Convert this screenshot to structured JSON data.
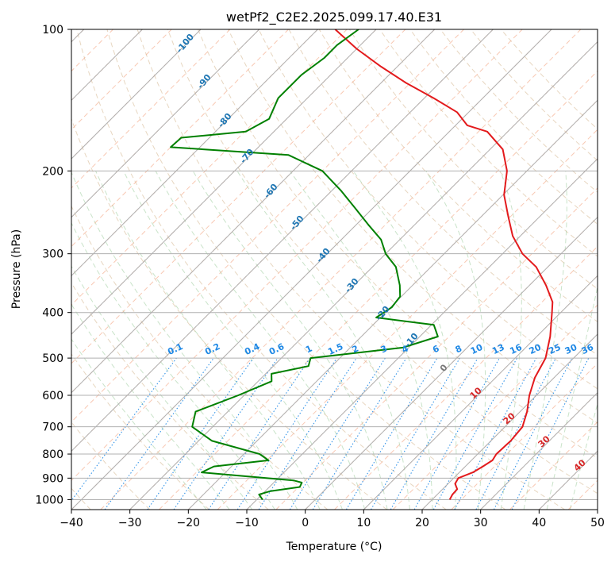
{
  "chart_data": {
    "type": "skew-t log-p sounding",
    "title": "wetPf2_C2E2.2025.099.17.40.E31",
    "xlabel": "Temperature (°C)",
    "ylabel": "Pressure (hPa)",
    "xlim": [
      -40,
      50
    ],
    "ylim": [
      1050,
      100
    ],
    "y_scale": "log",
    "grid": true,
    "x_ticks": [
      -40,
      -30,
      -20,
      -10,
      0,
      10,
      20,
      30,
      40,
      50
    ],
    "y_ticks": [
      100,
      200,
      300,
      400,
      500,
      600,
      700,
      800,
      900,
      1000
    ],
    "series": [
      {
        "role": "temperature",
        "color": "#e31a1c",
        "points": [
          [
            23.0,
            1000
          ],
          [
            22.6,
            975
          ],
          [
            22.5,
            950
          ],
          [
            21.2,
            925
          ],
          [
            20.8,
            900
          ],
          [
            22.3,
            875
          ],
          [
            23.0,
            850
          ],
          [
            23.6,
            825
          ],
          [
            23.2,
            800
          ],
          [
            23.4,
            750
          ],
          [
            23.0,
            700
          ],
          [
            21.2,
            650
          ],
          [
            18.8,
            600
          ],
          [
            16.7,
            550
          ],
          [
            15.2,
            500
          ],
          [
            12.3,
            450
          ],
          [
            8.5,
            400
          ],
          [
            6.8,
            380
          ],
          [
            2.8,
            350
          ],
          [
            -2.0,
            320
          ],
          [
            -6.6,
            300
          ],
          [
            -11.3,
            275
          ],
          [
            -15.4,
            250
          ],
          [
            -19.8,
            225
          ],
          [
            -23.4,
            200
          ],
          [
            -27.8,
            180
          ],
          [
            -33.5,
            165
          ],
          [
            -38.0,
            160
          ],
          [
            -42.0,
            150
          ],
          [
            -48.4,
            140
          ],
          [
            -55.7,
            130
          ],
          [
            -62.8,
            120
          ],
          [
            -70.0,
            110
          ],
          [
            -77.0,
            100
          ]
        ]
      },
      {
        "role": "dewpoint",
        "color": "#008000",
        "points": [
          [
            -9.0,
            1000
          ],
          [
            -10.5,
            975
          ],
          [
            -9.2,
            960
          ],
          [
            -4.8,
            940
          ],
          [
            -5.2,
            920
          ],
          [
            -7.0,
            910
          ],
          [
            -24.1,
            875
          ],
          [
            -23.0,
            850
          ],
          [
            -14.7,
            825
          ],
          [
            -17.3,
            800
          ],
          [
            -27.7,
            750
          ],
          [
            -33.5,
            700
          ],
          [
            -35.5,
            650
          ],
          [
            -31.0,
            600
          ],
          [
            -27.7,
            560
          ],
          [
            -29.0,
            540
          ],
          [
            -24.0,
            520
          ],
          [
            -25.0,
            500
          ],
          [
            -11.0,
            475
          ],
          [
            -6.9,
            450
          ],
          [
            -9.6,
            425
          ],
          [
            -20.7,
            410
          ],
          [
            -19.8,
            390
          ],
          [
            -20.2,
            370
          ],
          [
            -22.2,
            350
          ],
          [
            -26.0,
            320
          ],
          [
            -30.0,
            300
          ],
          [
            -33.2,
            280
          ],
          [
            -38.0,
            260
          ],
          [
            -43.0,
            240
          ],
          [
            -48.5,
            220
          ],
          [
            -55.0,
            200
          ],
          [
            -63.5,
            185
          ],
          [
            -85.0,
            178
          ],
          [
            -84.8,
            170
          ],
          [
            -74.8,
            165
          ],
          [
            -73.0,
            155
          ],
          [
            -75.0,
            140
          ],
          [
            -75.0,
            125
          ],
          [
            -74.0,
            115
          ],
          [
            -74.0,
            108
          ],
          [
            -73.0,
            100
          ]
        ]
      }
    ],
    "dry_adiabat_labels": [
      "-100",
      "-90",
      "-80",
      "-70",
      "-60",
      "-50",
      "-40",
      "-30",
      "-20",
      "-10",
      "0"
    ],
    "moist_adiabat_labels": [
      "10",
      "20",
      "30",
      "40"
    ],
    "mixing_ratio_labels": [
      "0.1",
      "0.2",
      "0.4",
      "0.6",
      "1",
      "1.5",
      "2",
      "3",
      "4",
      "6",
      "8",
      "10",
      "13",
      "16",
      "20",
      "25",
      "30",
      "36"
    ]
  }
}
